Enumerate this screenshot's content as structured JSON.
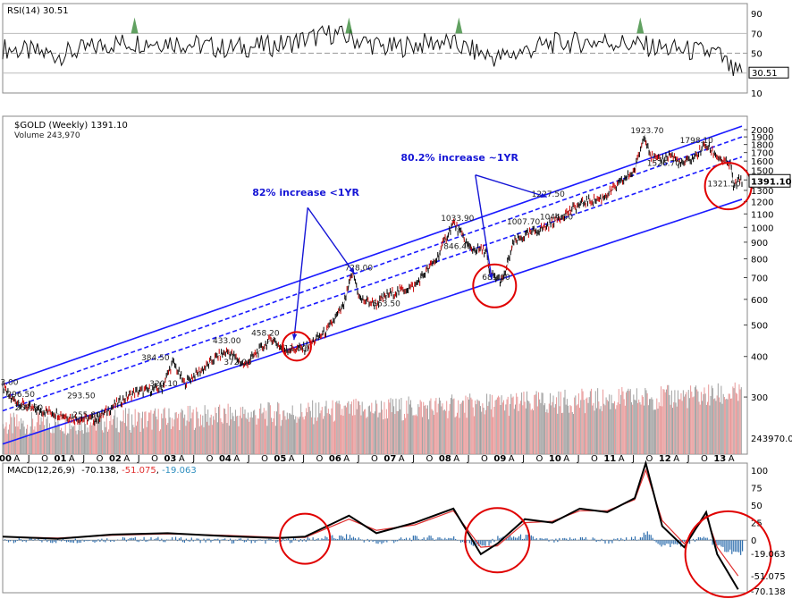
{
  "rsi_header": "RSI(14) 30.51",
  "price_header": "$GOLD (Weekly) 1391.10",
  "volume_header": "Volume 243,970",
  "macd_header": {
    "label": "MACD(12,26,9)",
    "v1": "-70.138",
    "v2": "-51.075",
    "v3": "-19.063"
  },
  "colors": {
    "channel": "#1a1aff",
    "annotation": "#1515d6",
    "circle": "#e00000",
    "up": "#000000",
    "down": "#cc0000",
    "rsi_fill": "#3a8a3a",
    "macd_signal": "#e03030",
    "hist": "#2f6fae",
    "volume_pos": "#e89898",
    "volume_neg": "#a0a0a0"
  },
  "chart_data": [
    {
      "type": "line",
      "title": "RSI(14) 30.51",
      "yticks": [
        10,
        30,
        50,
        70,
        90
      ],
      "ylim": [
        10,
        100
      ],
      "series": [
        {
          "name": "RSI(14)",
          "x": [
            2000.0,
            2001.0,
            2002.0,
            2003.0,
            2004.0,
            2005.0,
            2006.0,
            2007.0,
            2008.0,
            2009.0,
            2010.0,
            2011.0,
            2012.0,
            2013.0,
            2013.3
          ],
          "values": [
            55,
            48,
            60,
            62,
            55,
            58,
            70,
            55,
            62,
            45,
            60,
            62,
            55,
            50,
            30.51
          ]
        }
      ],
      "last_value": "30.51"
    },
    {
      "type": "line",
      "title": "$GOLD (Weekly) 1391.10",
      "scale": "log",
      "xlim": [
        2000.0,
        2013.45
      ],
      "ylim": [
        200,
        2200
      ],
      "yticks": [
        300,
        400,
        500,
        600,
        700,
        800,
        900,
        1000,
        1100,
        1200,
        1300,
        1400,
        1500,
        1600,
        1700,
        1800,
        1900,
        2000
      ],
      "ytick_labels": [
        "300",
        "400",
        "500",
        "600",
        "700",
        "800",
        "900",
        "1000",
        "1100",
        "1200",
        "1300",
        "1400",
        "1500",
        "1600",
        "1700",
        "1800",
        "1900",
        "2000"
      ],
      "xtick_years": [
        "00",
        "01",
        "02",
        "03",
        "04",
        "05",
        "06",
        "07",
        "08",
        "09",
        "10",
        "11",
        "12",
        "13"
      ],
      "month_labels": [
        "A",
        "J",
        "O"
      ],
      "series": [
        {
          "name": "$GOLD",
          "x": [
            2000.0,
            2000.15,
            2000.55,
            2000.9,
            2001.3,
            2001.7,
            2002.0,
            2002.4,
            2002.9,
            2003.1,
            2003.3,
            2003.7,
            2003.9,
            2004.1,
            2004.4,
            2004.9,
            2005.1,
            2005.5,
            2005.9,
            2006.2,
            2006.37,
            2006.5,
            2006.8,
            2007.0,
            2007.5,
            2007.9,
            2008.2,
            2008.5,
            2008.8,
            2008.85,
            2009.1,
            2009.3,
            2009.6,
            2009.9,
            2010.3,
            2010.6,
            2010.9,
            2011.2,
            2011.5,
            2011.68,
            2011.8,
            2011.95,
            2012.15,
            2012.35,
            2012.6,
            2012.78,
            2012.9,
            2013.1,
            2013.25,
            2013.3,
            2013.38
          ],
          "values": [
            323,
            296.5,
            275,
            269.5,
            258,
            255.8,
            280,
            310,
            320,
            384.5,
            330,
            372,
            400,
            415,
            375,
            455,
            420,
            424,
            480,
            570,
            728,
            600,
            580,
            620,
            660,
            800,
            1033.9,
            860,
            846.4,
            720,
            681,
            900,
            960,
            1007.7,
            1120,
            1200,
            1227.5,
            1350,
            1500,
            1923.7,
            1650,
            1600,
            1680,
            1560,
            1650,
            1798.1,
            1720,
            1600,
            1550,
            1321.5,
            1391.1
          ]
        }
      ],
      "point_labels": [
        {
          "text": "323.00",
          "x": 2000.0,
          "y": 323
        },
        {
          "text": "296.50",
          "x": 2000.3,
          "y": 296.5
        },
        {
          "text": "293.50",
          "x": 2001.4,
          "y": 293.5
        },
        {
          "text": "269.50",
          "x": 2000.45,
          "y": 269.5
        },
        {
          "text": "255.80",
          "x": 2001.5,
          "y": 255.8
        },
        {
          "text": "320.10",
          "x": 2002.9,
          "y": 320.1
        },
        {
          "text": "384.50",
          "x": 2002.75,
          "y": 384.5
        },
        {
          "text": "433.00",
          "x": 2004.05,
          "y": 433
        },
        {
          "text": "372.00",
          "x": 2004.25,
          "y": 372
        },
        {
          "text": "458.20",
          "x": 2004.75,
          "y": 458.2
        },
        {
          "text": "411.50",
          "x": 2005.25,
          "y": 411.5
        },
        {
          "text": "728.00",
          "x": 2006.45,
          "y": 728
        },
        {
          "text": "563.50",
          "x": 2006.95,
          "y": 563.5
        },
        {
          "text": "1033.90",
          "x": 2008.2,
          "y": 1033.9
        },
        {
          "text": "846.40",
          "x": 2008.25,
          "y": 846.4
        },
        {
          "text": "681.00",
          "x": 2008.95,
          "y": 681
        },
        {
          "text": "1007.70",
          "x": 2009.4,
          "y": 1007.7
        },
        {
          "text": "1044.50",
          "x": 2010.0,
          "y": 1044.5
        },
        {
          "text": "1227.50",
          "x": 2009.85,
          "y": 1227.5
        },
        {
          "text": "1923.70",
          "x": 2011.65,
          "y": 1923.7
        },
        {
          "text": "1526.70",
          "x": 2011.95,
          "y": 1526.7
        },
        {
          "text": "1798.10",
          "x": 2012.55,
          "y": 1798.1
        },
        {
          "text": "1321.50",
          "x": 2013.05,
          "y": 1321.5
        }
      ],
      "last_value": "1391.10",
      "volume_last": "243970.0",
      "annotations": [
        {
          "text": "82% increase <1YR",
          "x": 2005.55,
          "y": 1250
        },
        {
          "text": "80.2% increase ~1YR",
          "x": 2008.35,
          "y": 1600
        }
      ]
    },
    {
      "type": "line",
      "title": "MACD(12,26,9) -70.138, -51.075, -19.063",
      "ylim": [
        -75,
        110
      ],
      "yticks": [
        0,
        25,
        50,
        75,
        100
      ],
      "series": [
        {
          "name": "MACD",
          "x": [
            2000.0,
            2001.0,
            2002.0,
            2003.0,
            2004.0,
            2005.0,
            2005.5,
            2006.3,
            2006.8,
            2007.5,
            2008.2,
            2008.7,
            2009.0,
            2009.5,
            2010.0,
            2010.5,
            2011.0,
            2011.5,
            2011.7,
            2012.0,
            2012.4,
            2012.8,
            2013.0,
            2013.38
          ],
          "values": [
            5,
            2,
            8,
            10,
            6,
            3,
            5,
            35,
            10,
            25,
            45,
            -20,
            -5,
            30,
            25,
            45,
            40,
            60,
            110,
            20,
            -10,
            40,
            -20,
            -70.138
          ]
        },
        {
          "name": "Signal",
          "x": [
            2000.0,
            2001.0,
            2002.0,
            2003.0,
            2004.0,
            2005.0,
            2005.5,
            2006.3,
            2006.8,
            2007.5,
            2008.2,
            2008.7,
            2009.0,
            2009.5,
            2010.0,
            2010.5,
            2011.0,
            2011.5,
            2011.7,
            2012.0,
            2012.4,
            2012.8,
            2013.0,
            2013.38
          ],
          "values": [
            5,
            3,
            7,
            9,
            7,
            4,
            4,
            30,
            14,
            22,
            42,
            -10,
            -8,
            25,
            27,
            42,
            42,
            58,
            100,
            28,
            -5,
            35,
            -10,
            -51.075
          ]
        }
      ],
      "histogram_last": "-19.063"
    }
  ]
}
